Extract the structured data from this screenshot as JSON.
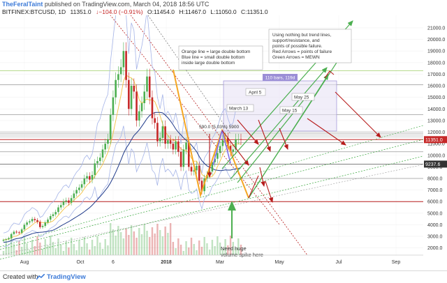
{
  "header": {
    "author": "TheFeralTaint",
    "published": "published on TradingView.com, March 04, 2018 18:56 UTC",
    "symbol": "BITFINEX:BTCUSD, 1D",
    "last": "11351.0",
    "change": "↓−104.0 (−0.91%)",
    "open": "O:11454.0",
    "high": "H:11467.0",
    "low": "L:11050.0",
    "close": "C:11351.0"
  },
  "footer": {
    "created_with": "Created with",
    "brand": "TradingView"
  },
  "chart_data": {
    "type": "line",
    "title": "BITFINEX:BTCUSD, 1D",
    "x_tick_labels": [
      "Aug",
      "Oct",
      "6",
      "2018",
      "Mar",
      "May",
      "Jul",
      "Sep"
    ],
    "y_tick_labels": [
      "21000.0",
      "20000.0",
      "19000.0",
      "18000.0",
      "17000.0",
      "16000.0",
      "15000.0",
      "14000.0",
      "13000.0",
      "12000.0",
      "11000.0",
      "10000.0",
      "9000.0",
      "8000.0",
      "7000.0",
      "6000.0",
      "5000.0",
      "4000.0",
      "3000.0",
      "2000.0"
    ],
    "ylim": [
      1500,
      21600
    ],
    "price_labels": {
      "last": "11351.0",
      "level": "9237.6"
    },
    "series": [
      {
        "values": [
          2700,
          2750,
          2850,
          3200,
          3400,
          3350,
          3300,
          3600,
          4000,
          4200,
          4300,
          4500,
          4400,
          4250,
          3800,
          3900,
          4200,
          4450,
          4750,
          4900,
          5100,
          5500,
          5700,
          6000,
          6100,
          5900,
          6300,
          6700,
          7000,
          7200,
          7500,
          8000,
          8200,
          7900,
          8300,
          9300,
          9500,
          9800,
          10500,
          11000,
          11400,
          13500,
          15000,
          16500,
          17000,
          17600,
          19000,
          16500,
          14000,
          16000,
          15500,
          13000,
          13800,
          14500,
          15500,
          16800,
          15000,
          13200,
          12800,
          11200,
          11500,
          12500,
          11000,
          11300,
          11000,
          10500,
          11200,
          10300,
          9000,
          10500,
          11100,
          9000,
          8600,
          8700,
          9100,
          7800,
          6900,
          8000,
          8300,
          8600,
          9400,
          9700,
          10200,
          10800,
          11300,
          11500,
          10800,
          10300,
          10500,
          11400,
          11400,
          11350
        ]
      }
    ],
    "annotations": {
      "bars_label": "110 bars, 119d",
      "box_text": "Using nothing but trend lines,\nsupport/resistance, and\npoints of possible failure.\nRed Arrows = points of failure\nGreen Arrows = MEWN",
      "orange_note": "Orange line = large double bottom\nBlue line = small double bottom\ninside large double bottom",
      "target_label": "590.0 (5.03%) 5900",
      "date_labels": [
        "March 13",
        "April 5",
        "May 15",
        "May 25"
      ],
      "volume_note": "Need huge\nvolume spike here"
    },
    "horizontal_levels": [
      17300,
      16100,
      13500,
      11900,
      11351,
      11100,
      10300,
      9237.6,
      8000,
      6000
    ],
    "colors": {
      "price": "#c62828",
      "orange_line": "#f5a623",
      "blue_line": "#7b68ee",
      "green_arrows": "#4caf50",
      "red_arrows": "#b71c1c",
      "ma": "#1f3a8a",
      "bollinger": "#a5b4e8",
      "gray_level": "#888888"
    }
  }
}
